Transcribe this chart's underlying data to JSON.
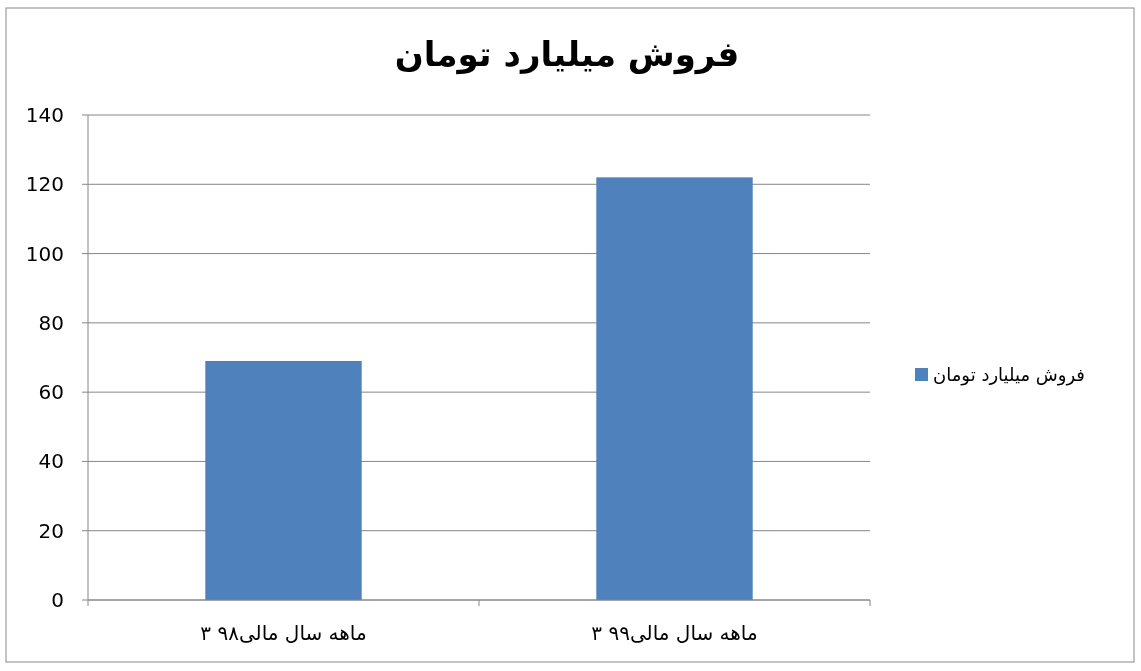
{
  "chart_data": {
    "type": "bar",
    "title": "فروش میلیارد تومان",
    "categories": [
      "۳ ماهه سال مالی۹۸",
      "۳ ماهه سال مالی۹۹"
    ],
    "series": [
      {
        "name": "فروش میلیارد تومان",
        "color": "#4f81bd",
        "values": [
          69,
          122
        ]
      }
    ],
    "ylim": [
      0,
      140
    ],
    "yticks": [
      0,
      20,
      40,
      60,
      80,
      100,
      120,
      140
    ],
    "grid": "y",
    "legend": "right"
  }
}
